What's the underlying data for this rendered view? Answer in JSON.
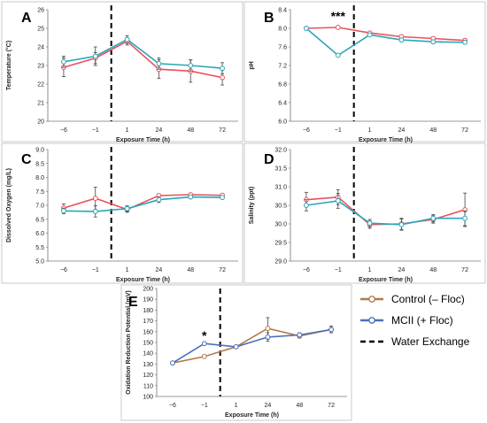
{
  "figure": {
    "legend": [
      {
        "label": "Control (– Floc)",
        "color": "#B07A4A",
        "kind": "line-marker"
      },
      {
        "label": "MCII (+ Floc)",
        "color": "#4A6FBF",
        "kind": "line-marker"
      },
      {
        "label": "Water Exchange",
        "color": "#000000",
        "kind": "dashed"
      }
    ]
  },
  "chart_data": [
    {
      "panel": "A",
      "type": "line",
      "x": [
        "−6",
        "−1",
        "1",
        "24",
        "48",
        "72"
      ],
      "xlabel": "Exposure Time (h)",
      "ylabel": "Temperature (°C)",
      "ylim": [
        20,
        26
      ],
      "yticks": [
        20,
        21,
        22,
        23,
        24,
        25,
        26
      ],
      "ytick_format": "int",
      "water_exchange_after": "−1",
      "grid": false,
      "annotation": "",
      "series": [
        {
          "values": [
            22.9,
            23.4,
            24.3,
            22.8,
            22.7,
            22.35
          ],
          "errors": [
            0.5,
            0.3,
            0.2,
            0.5,
            0.6,
            0.4
          ],
          "color": "#E8515A"
        },
        {
          "values": [
            23.2,
            23.5,
            24.4,
            23.1,
            23.0,
            22.85
          ],
          "errors": [
            0.3,
            0.5,
            0.2,
            0.3,
            0.3,
            0.3
          ],
          "color": "#2AA6B8"
        }
      ]
    },
    {
      "panel": "B",
      "type": "line",
      "x": [
        "−6",
        "−1",
        "1",
        "24",
        "48",
        "72"
      ],
      "xlabel": "Exposure Time (h)",
      "ylabel": "pH",
      "ylim": [
        6.0,
        8.4
      ],
      "yticks": [
        6.0,
        6.4,
        6.8,
        7.2,
        7.6,
        8.0,
        8.4
      ],
      "ytick_format": "1dp",
      "water_exchange_after": "−1",
      "grid": false,
      "annotation": "***",
      "annotation_x": "−1",
      "series": [
        {
          "values": [
            8.0,
            8.02,
            7.9,
            7.82,
            7.78,
            7.74
          ],
          "errors": [
            0.0,
            0.0,
            0.03,
            0.04,
            0.04,
            0.04
          ],
          "color": "#E8515A"
        },
        {
          "values": [
            8.0,
            7.42,
            7.86,
            7.75,
            7.71,
            7.7
          ],
          "errors": [
            0.0,
            0.0,
            0.03,
            0.04,
            0.04,
            0.04
          ],
          "color": "#2AA6B8"
        }
      ]
    },
    {
      "panel": "C",
      "type": "line",
      "x": [
        "−6",
        "−1",
        "1",
        "24",
        "48",
        "72"
      ],
      "xlabel": "Exposure Time (h)",
      "ylabel": "Dissolved Oxygen (mg/L)",
      "ylim": [
        5.0,
        9.0
      ],
      "yticks": [
        5.0,
        5.5,
        6.0,
        6.5,
        7.0,
        7.5,
        8.0,
        8.5,
        9.0
      ],
      "ytick_format": "1dp",
      "water_exchange_after": "−1",
      "grid": false,
      "annotation": "",
      "series": [
        {
          "values": [
            6.9,
            7.25,
            6.85,
            7.35,
            7.38,
            7.36
          ],
          "errors": [
            0.15,
            0.4,
            0.1,
            0.05,
            0.05,
            0.05
          ],
          "color": "#E8515A"
        },
        {
          "values": [
            6.8,
            6.78,
            6.88,
            7.2,
            7.3,
            7.28
          ],
          "errors": [
            0.1,
            0.2,
            0.1,
            0.1,
            0.05,
            0.05
          ],
          "color": "#2AA6B8"
        }
      ]
    },
    {
      "panel": "D",
      "type": "line",
      "x": [
        "−6",
        "−1",
        "1",
        "24",
        "48",
        "72"
      ],
      "xlabel": "Exposure Time (h)",
      "ylabel": "Salinity (ppt)",
      "ylim": [
        29.0,
        32.0
      ],
      "yticks": [
        29.0,
        29.5,
        30.0,
        30.5,
        31.0,
        31.5,
        32.0
      ],
      "ytick_format": "1dp",
      "water_exchange_after": "−1",
      "grid": false,
      "annotation": "",
      "series": [
        {
          "values": [
            30.65,
            30.72,
            29.98,
            30.0,
            30.12,
            30.38
          ],
          "errors": [
            0.2,
            0.2,
            0.1,
            0.15,
            0.1,
            0.45
          ],
          "color": "#E8515A"
        },
        {
          "values": [
            30.5,
            30.62,
            30.02,
            29.98,
            30.15,
            30.15
          ],
          "errors": [
            0.15,
            0.2,
            0.1,
            0.15,
            0.1,
            0.2
          ],
          "color": "#2AA6B8"
        }
      ]
    },
    {
      "panel": "E",
      "type": "line",
      "x": [
        "−6",
        "−1",
        "1",
        "24",
        "48",
        "72"
      ],
      "xlabel": "Exposure Time (h)",
      "ylabel": "Oxidation Reduction Potential (mV)",
      "ylim": [
        100,
        200
      ],
      "yticks": [
        100,
        110,
        120,
        130,
        140,
        150,
        160,
        170,
        180,
        190,
        200
      ],
      "ytick_format": "int",
      "water_exchange_after": "−1",
      "grid": false,
      "annotation": "*",
      "annotation_x": "−1",
      "series": [
        {
          "name": "Control (– Floc)",
          "values": [
            131,
            137,
            146,
            163,
            156,
            162
          ],
          "errors": [
            0,
            1,
            0,
            10,
            2,
            3
          ],
          "color": "#B07A4A"
        },
        {
          "name": "MCII (+ Floc)",
          "values": [
            131,
            149,
            146,
            155,
            157,
            162
          ],
          "errors": [
            0,
            1,
            0,
            4,
            2,
            3
          ],
          "color": "#4A6FBF"
        }
      ]
    }
  ]
}
